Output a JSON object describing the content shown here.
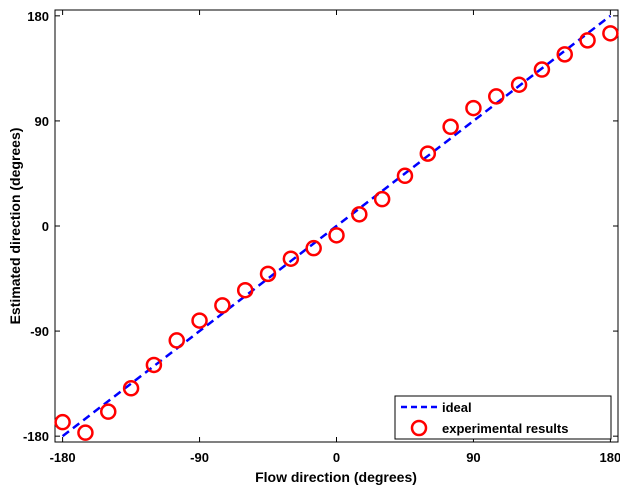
{
  "chart_data": {
    "type": "scatter",
    "xlabel": "Flow direction (degrees)",
    "ylabel": "Estimated direction (degrees)",
    "xlim": [
      -185,
      185
    ],
    "ylim": [
      -185,
      185
    ],
    "xticks": [
      -180,
      -90,
      0,
      90,
      180
    ],
    "yticks": [
      -180,
      -90,
      0,
      90,
      180
    ],
    "xtick_labels": [
      "-180",
      "-90",
      "0",
      "90",
      "180"
    ],
    "ytick_labels": [
      "-180",
      "-90",
      "0",
      "90",
      "180"
    ],
    "grid": false,
    "legend_position": "bottom-right",
    "series": [
      {
        "name": "ideal",
        "style": "dashed-line",
        "color": "#0000ff",
        "x": [
          -180,
          180
        ],
        "y": [
          -180,
          180
        ]
      },
      {
        "name": "experimental results",
        "style": "open-circle",
        "color": "#ff0000",
        "x": [
          -180,
          -165,
          -150,
          -135,
          -120,
          -105,
          -90,
          -75,
          -60,
          -45,
          -30,
          -15,
          0,
          15,
          30,
          45,
          60,
          75,
          90,
          105,
          120,
          135,
          150,
          165,
          180
        ],
        "y": [
          -168,
          -177,
          -159,
          -139,
          -119,
          -98,
          -81,
          -68,
          -55,
          -41,
          -28,
          -19,
          -8,
          10,
          23,
          43,
          62,
          85,
          101,
          111,
          121,
          134,
          147,
          159,
          165
        ]
      }
    ]
  }
}
